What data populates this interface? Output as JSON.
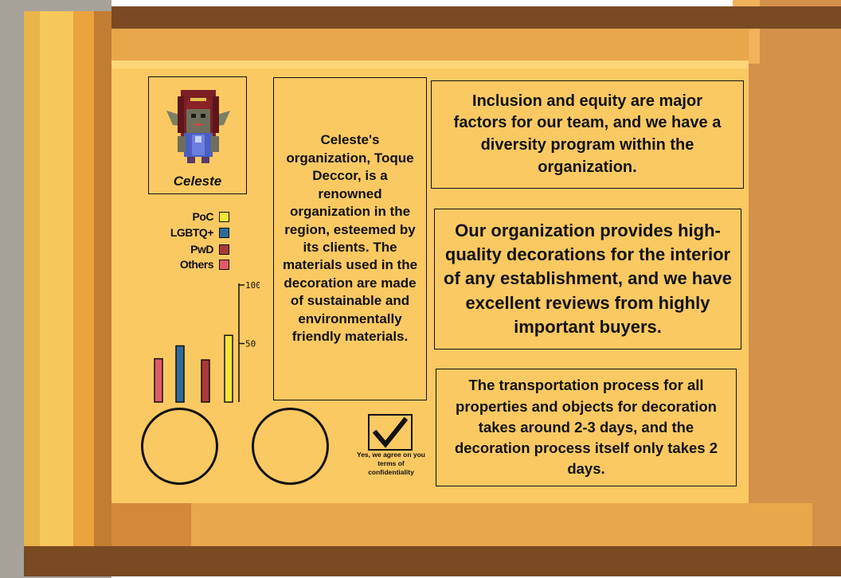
{
  "avatar": {
    "name": "Celeste"
  },
  "legend": [
    {
      "label": "PoC",
      "color": "#f5e63a"
    },
    {
      "label": "LGBTQ+",
      "color": "#2f6b9a"
    },
    {
      "label": "PwD",
      "color": "#a8393b"
    },
    {
      "label": "Others",
      "color": "#e05a67"
    }
  ],
  "chart_data": {
    "type": "bar",
    "categories": [
      "Others",
      "LGBTQ+",
      "PwD",
      "PoC"
    ],
    "values": [
      37,
      48,
      36,
      57
    ],
    "colors": [
      "#e05a67",
      "#2f6b9a",
      "#a8393b",
      "#f5e63a"
    ],
    "ylim": [
      0,
      100
    ],
    "yticks": [
      "100",
      "50"
    ],
    "grid": false
  },
  "texts": {
    "organization_info": "Celeste's organization, Toque Deccor, is a renowned organization in the region, esteemed by its clients. The materials used in the decoration are made of sustainable and environmentally friendly materials.",
    "inclusion": "Inclusion and equity are major factors for our team, and we have a diversity program within the organization.",
    "quality": "Our organization provides high-quality decorations for the interior of any establishment, and we have excellent reviews from highly important buyers.",
    "transport": "The transportation process for all properties and objects for decoration takes around 2-3 days, and the decoration process itself only takes 2 days."
  },
  "confidentiality": {
    "checked": true,
    "caption": "Yes, we agree on you terms of confidentiality"
  }
}
